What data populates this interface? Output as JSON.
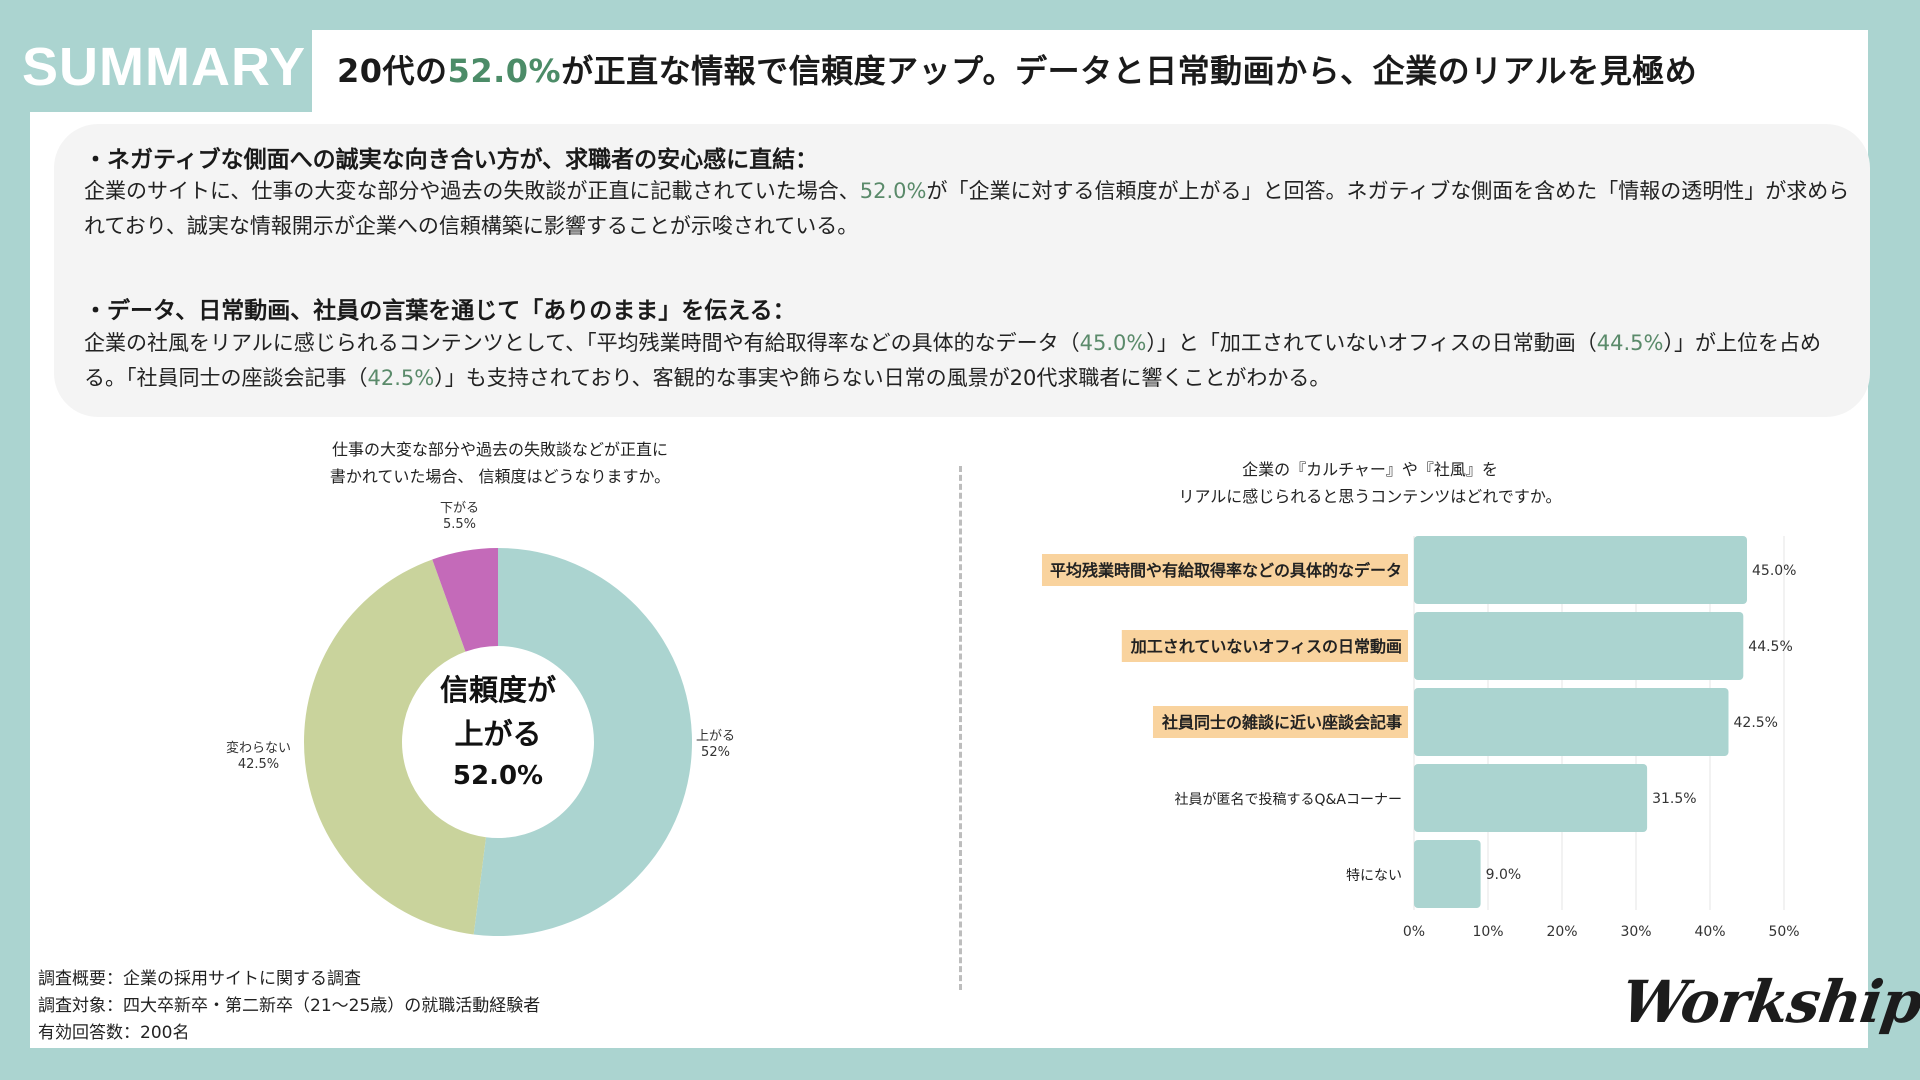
{
  "header": {
    "tab_label": "SUMMARY",
    "headline_prefix": "20代の",
    "headline_accent": "52.0%",
    "headline_suffix": "が正直な情報で信頼度アップ。データと日常動画から、企業のリアルを見極め"
  },
  "summary": {
    "points": [
      {
        "title": "・ネガティブな側面への誠実な向き合い方が、求職者の安心感に直結：",
        "body_1": "企業のサイトに、仕事の大変な部分や過去の失敗談が正直に記載されていた場合、",
        "body_1_accent": "52.0%",
        "body_2": "が「企業に対する信頼度が上がる」と回答。ネガティブな側面を含めた「情報の透明性」が求められており、誠実な情報開示が企業への信頼構築に影響することが示唆されている。"
      },
      {
        "title": "・データ、日常動画、社員の言葉を通じて「ありのまま」を伝える：",
        "body_1": "企業の社風をリアルに感じられるコンテンツとして、「平均残業時間や有給取得率などの具体的なデータ（",
        "accent_1": "45.0%",
        "body_2": "）」と「加工されていないオフィスの日常動画（",
        "accent_2": "44.5%",
        "body_3": "）」が上位を占める。「社員同士の座談会記事（",
        "accent_3": "42.5%",
        "body_4": "）」も支持されており、客観的な事実や飾らない日常の風景が20代求職者に響くことがわかる。"
      }
    ]
  },
  "chart_data": [
    {
      "type": "pie",
      "variant": "donut",
      "title_line_1": "仕事の大変な部分や過去の失敗談などが正直に",
      "title_line_2": "書かれていた場合、 信頼度はどうなりますか。",
      "slices": [
        {
          "label": "上がる",
          "value": 52.0,
          "value_label": "52%",
          "color": "#abd4d0"
        },
        {
          "label": "変わらない",
          "value": 42.5,
          "value_label": "42.5%",
          "color": "#c9d39c"
        },
        {
          "label": "下がる",
          "value": 5.5,
          "value_label": "5.5%",
          "color": "#c46ab9"
        }
      ],
      "center_line_1": "信頼度が",
      "center_line_2": "上がる",
      "center_value": "52.0%"
    },
    {
      "type": "bar",
      "orientation": "horizontal",
      "title_line_1": "企業の『カルチャー』や『社風』を",
      "title_line_2": "リアルに感じられると思うコンテンツはどれですか。",
      "categories": [
        "平均残業時間や有給取得率などの具体的なデータ",
        "加工されていないオフィスの日常動画",
        "社員同士の雑談に近い座談会記事",
        "社員が匿名で投稿するQ&Aコーナー",
        "特にない"
      ],
      "values": [
        45.0,
        44.5,
        42.5,
        31.5,
        9.0
      ],
      "value_labels": [
        "45.0%",
        "44.5%",
        "42.5%",
        "31.5%",
        "9.0%"
      ],
      "highlighted": [
        true,
        true,
        true,
        false,
        false
      ],
      "xlim": [
        0,
        50
      ],
      "x_ticks": [
        0,
        10,
        20,
        30,
        40,
        50
      ],
      "x_tick_labels": [
        "0%",
        "10%",
        "20%",
        "30%",
        "40%",
        "50%"
      ],
      "grid": true,
      "bar_color": "#abd4d0",
      "highlight_color": "#f9d39e"
    }
  ],
  "survey": {
    "line_1": "調査概要：企業の採用サイトに関する調査",
    "line_2": "調査対象：四大卒新卒・第二新卒（21〜25歳）の就職活動経験者",
    "line_3": "有効回答数：200名"
  },
  "brand": {
    "logo_text": "Workship"
  }
}
